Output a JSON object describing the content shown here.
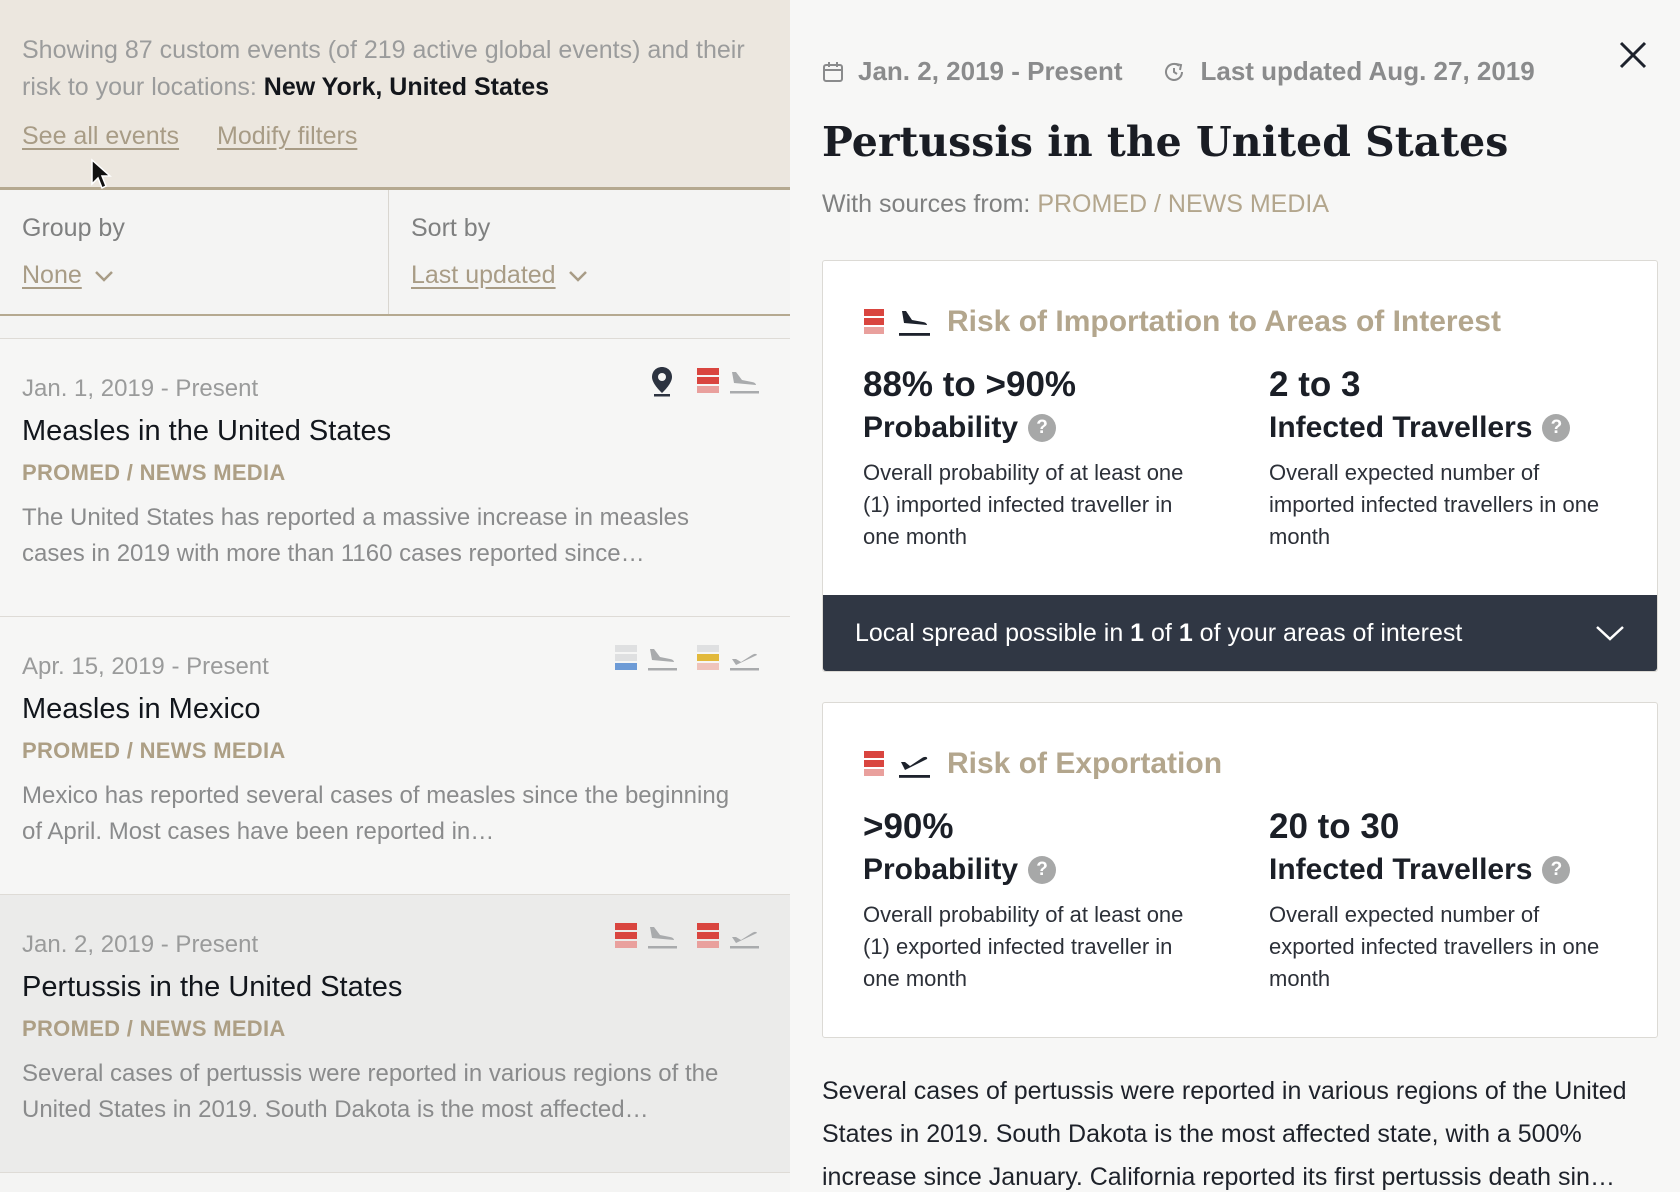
{
  "summary": {
    "text_prefix": "Showing 87 custom events (of 219 active global events) and their risk to your locations: ",
    "location": "New York, United States",
    "see_all_label": "See all events",
    "modify_filters_label": "Modify filters"
  },
  "controls": {
    "group_label": "Group by",
    "group_value": "None",
    "sort_label": "Sort by",
    "sort_value": "Last updated"
  },
  "events": [
    {
      "date": "Jan. 1, 2019 - Present",
      "title": "Measles in the United States",
      "source": "PROMED / NEWS MEDIA",
      "description": "The United States has reported a massive increase in measles cases in 2019 with more than 1160 cases reported since…",
      "icons": [
        "location-pin-icon",
        "risk-high-bars-icon",
        "plane-arrival-icon"
      ]
    },
    {
      "date": "Apr. 15, 2019 - Present",
      "title": "Measles in Mexico",
      "source": "PROMED / NEWS MEDIA",
      "description": "Mexico has reported several cases of measles since the beginning of April. Most cases have been reported in…",
      "icons": [
        "risk-low-bars-icon",
        "plane-arrival-icon",
        "risk-medium-bars-icon",
        "plane-departure-icon"
      ]
    },
    {
      "date": "Jan. 2, 2019 - Present",
      "title": "Pertussis in the United States",
      "source": "PROMED / NEWS MEDIA",
      "description": "Several cases of pertussis were reported in various regions of the United States in 2019. South Dakota is the most affected…",
      "icons": [
        "risk-high-bars-icon",
        "plane-arrival-icon",
        "risk-high-bars-icon",
        "plane-departure-icon"
      ]
    }
  ],
  "detail": {
    "date_range": "Jan. 2, 2019 - Present",
    "last_updated": "Last updated Aug. 27, 2019",
    "title": "Pertussis in the United States",
    "sources_label": "With sources from: ",
    "sources_value": "PROMED / NEWS MEDIA",
    "importation": {
      "title": "Risk of Importation to Areas of Interest",
      "probability_value": "88% to >90%",
      "probability_label": "Probability",
      "probability_desc": "Overall probability of at least one (1) imported infected traveller in one month",
      "travellers_value": "2 to 3",
      "travellers_label": "Infected Travellers",
      "travellers_desc": "Overall expected number of imported infected travellers in one month",
      "spread_prefix": "Local spread possible in ",
      "spread_count": "1",
      "spread_mid": " of ",
      "spread_total": "1",
      "spread_suffix": " of your areas of interest"
    },
    "exportation": {
      "title": "Risk of Exportation",
      "probability_value": ">90%",
      "probability_label": "Probability",
      "probability_desc": "Overall probability of at least one (1) exported infected traveller in one month",
      "travellers_value": "20 to 30",
      "travellers_label": "Infected Travellers",
      "travellers_desc": "Overall expected number of exported infected travellers in one month"
    },
    "body": "Several cases of pertussis were reported in various regions of the United States in 2019. South Dakota is the most affected state, with a 500% increase since January. California reported its first pertussis death sin…"
  },
  "colors": {
    "tan_accent": "#b3a68d",
    "risk_red": "#d9534f",
    "risk_low_blue": "#6d9bd6",
    "risk_medium_yellow": "#e2b93b",
    "dark_bar": "#303744"
  }
}
